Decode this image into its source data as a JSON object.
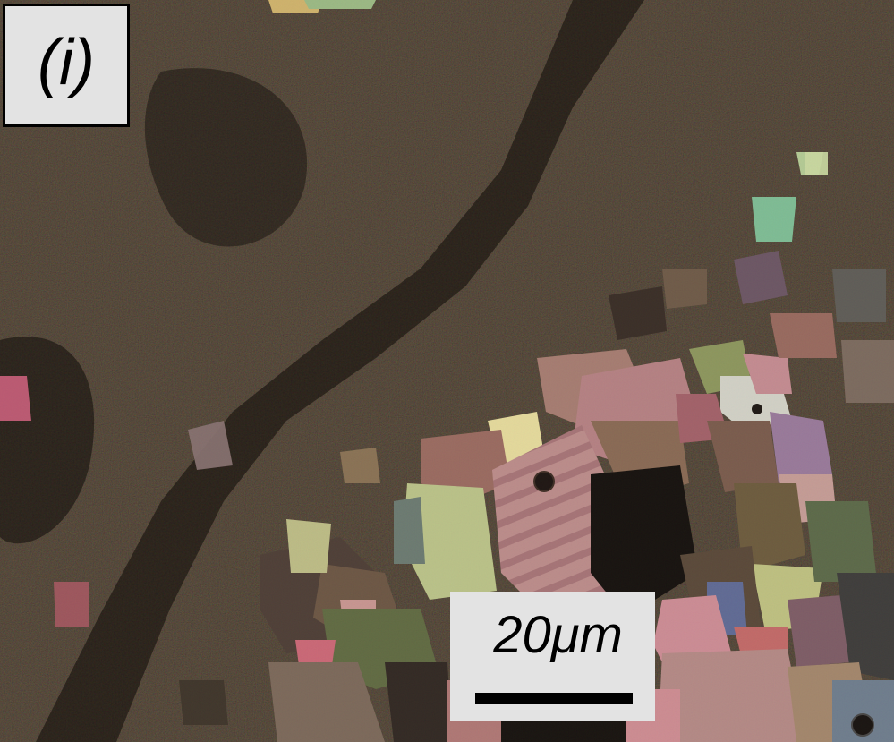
{
  "image": {
    "panel_label": "(i)",
    "scale_bar": {
      "label": "20μm"
    }
  }
}
